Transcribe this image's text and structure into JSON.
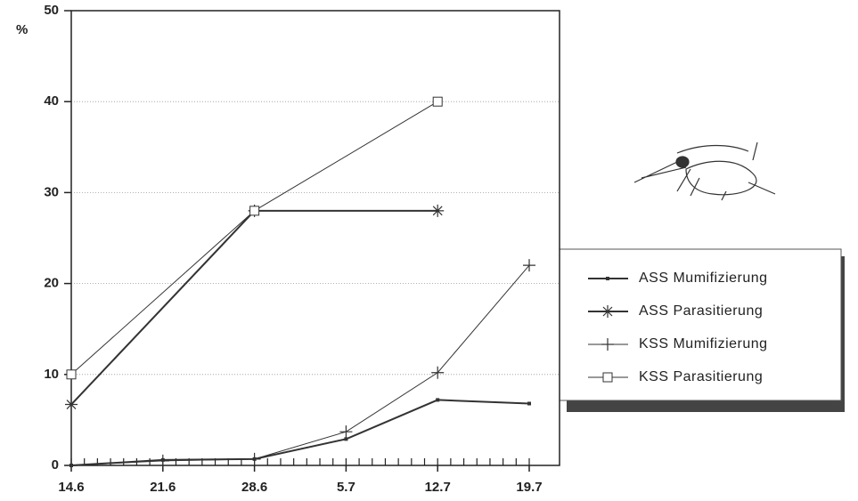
{
  "chart_data": {
    "type": "line",
    "y_label": "%",
    "xlim": [
      0,
      35
    ],
    "xticks": [
      {
        "value": 0,
        "label": "14.6"
      },
      {
        "value": 7,
        "label": "21.6"
      },
      {
        "value": 14,
        "label": "28.6"
      },
      {
        "value": 21,
        "label": "5.7"
      },
      {
        "value": 28,
        "label": "12.7"
      },
      {
        "value": 35,
        "label": "19.7"
      }
    ],
    "ylim": [
      0,
      50
    ],
    "yticks": [
      0,
      10,
      20,
      30,
      40,
      50
    ],
    "grid": true,
    "series": [
      {
        "name": "ASS Mumifizierung",
        "color": "#333",
        "marker": "dot",
        "width": 2,
        "x": [
          0,
          7,
          14,
          21,
          28,
          35
        ],
        "values": [
          0,
          0.6,
          0.7,
          2.9,
          7.2,
          6.8
        ]
      },
      {
        "name": "ASS Parasitierung",
        "color": "#333",
        "marker": "asterisk",
        "width": 2,
        "x": [
          0,
          14,
          28
        ],
        "values": [
          6.7,
          28,
          28
        ]
      },
      {
        "name": "KSS Mumifizierung",
        "color": "#333",
        "marker": "plus",
        "width": 1,
        "x": [
          0,
          7,
          14,
          21,
          28,
          35
        ],
        "values": [
          0,
          0.5,
          0.7,
          3.7,
          10.2,
          22
        ]
      },
      {
        "name": "KSS Parasitierung",
        "color": "#333",
        "marker": "square",
        "width": 1,
        "x": [
          0,
          14,
          28
        ],
        "values": [
          10,
          28,
          40
        ]
      }
    ]
  }
}
